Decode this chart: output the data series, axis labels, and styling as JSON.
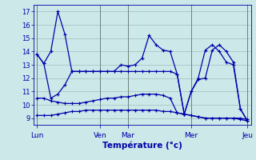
{
  "bg_color": "#cce8e8",
  "line_color": "#0000aa",
  "grid_color": "#9fbfbf",
  "ylim": [
    8.5,
    17.5
  ],
  "yticks": [
    9,
    10,
    11,
    12,
    13,
    14,
    15,
    16,
    17
  ],
  "xlabel": "Température (°c)",
  "day_labels": [
    "Lun",
    "Ven",
    "Mar",
    "Mer",
    "Jeu"
  ],
  "day_positions": [
    0,
    9,
    13,
    22,
    30
  ],
  "n_points": 31,
  "s_top": [
    13.8,
    13.1,
    14.0,
    17.0,
    15.3,
    12.5,
    12.5,
    12.5,
    12.5,
    12.5,
    12.5,
    12.5,
    13.0,
    12.9,
    13.0,
    13.5,
    15.2,
    14.5,
    14.1,
    14.0,
    12.3,
    9.3,
    11.0,
    12.0,
    14.1,
    14.5,
    14.0,
    13.2,
    13.0,
    9.7,
    8.8
  ],
  "s_mid": [
    13.8,
    13.1,
    10.5,
    10.8,
    11.5,
    12.5,
    12.5,
    12.5,
    12.5,
    12.5,
    12.5,
    12.5,
    12.5,
    12.5,
    12.5,
    12.5,
    12.5,
    12.5,
    12.5,
    12.5,
    12.3,
    9.3,
    11.0,
    11.9,
    12.0,
    14.1,
    14.5,
    14.0,
    13.2,
    9.7,
    8.8
  ],
  "s_low": [
    10.5,
    10.5,
    10.3,
    10.2,
    10.1,
    10.1,
    10.1,
    10.2,
    10.3,
    10.4,
    10.5,
    10.5,
    10.6,
    10.6,
    10.7,
    10.8,
    10.8,
    10.8,
    10.7,
    10.5,
    9.4,
    9.3,
    9.2,
    9.1,
    9.0,
    9.0,
    9.0,
    9.0,
    9.0,
    9.0,
    8.9
  ],
  "s_bot": [
    9.2,
    9.2,
    9.2,
    9.3,
    9.4,
    9.5,
    9.5,
    9.6,
    9.6,
    9.6,
    9.6,
    9.6,
    9.6,
    9.6,
    9.6,
    9.6,
    9.6,
    9.6,
    9.5,
    9.5,
    9.4,
    9.3,
    9.2,
    9.1,
    9.0,
    9.0,
    9.0,
    9.0,
    9.0,
    8.9,
    8.8
  ]
}
